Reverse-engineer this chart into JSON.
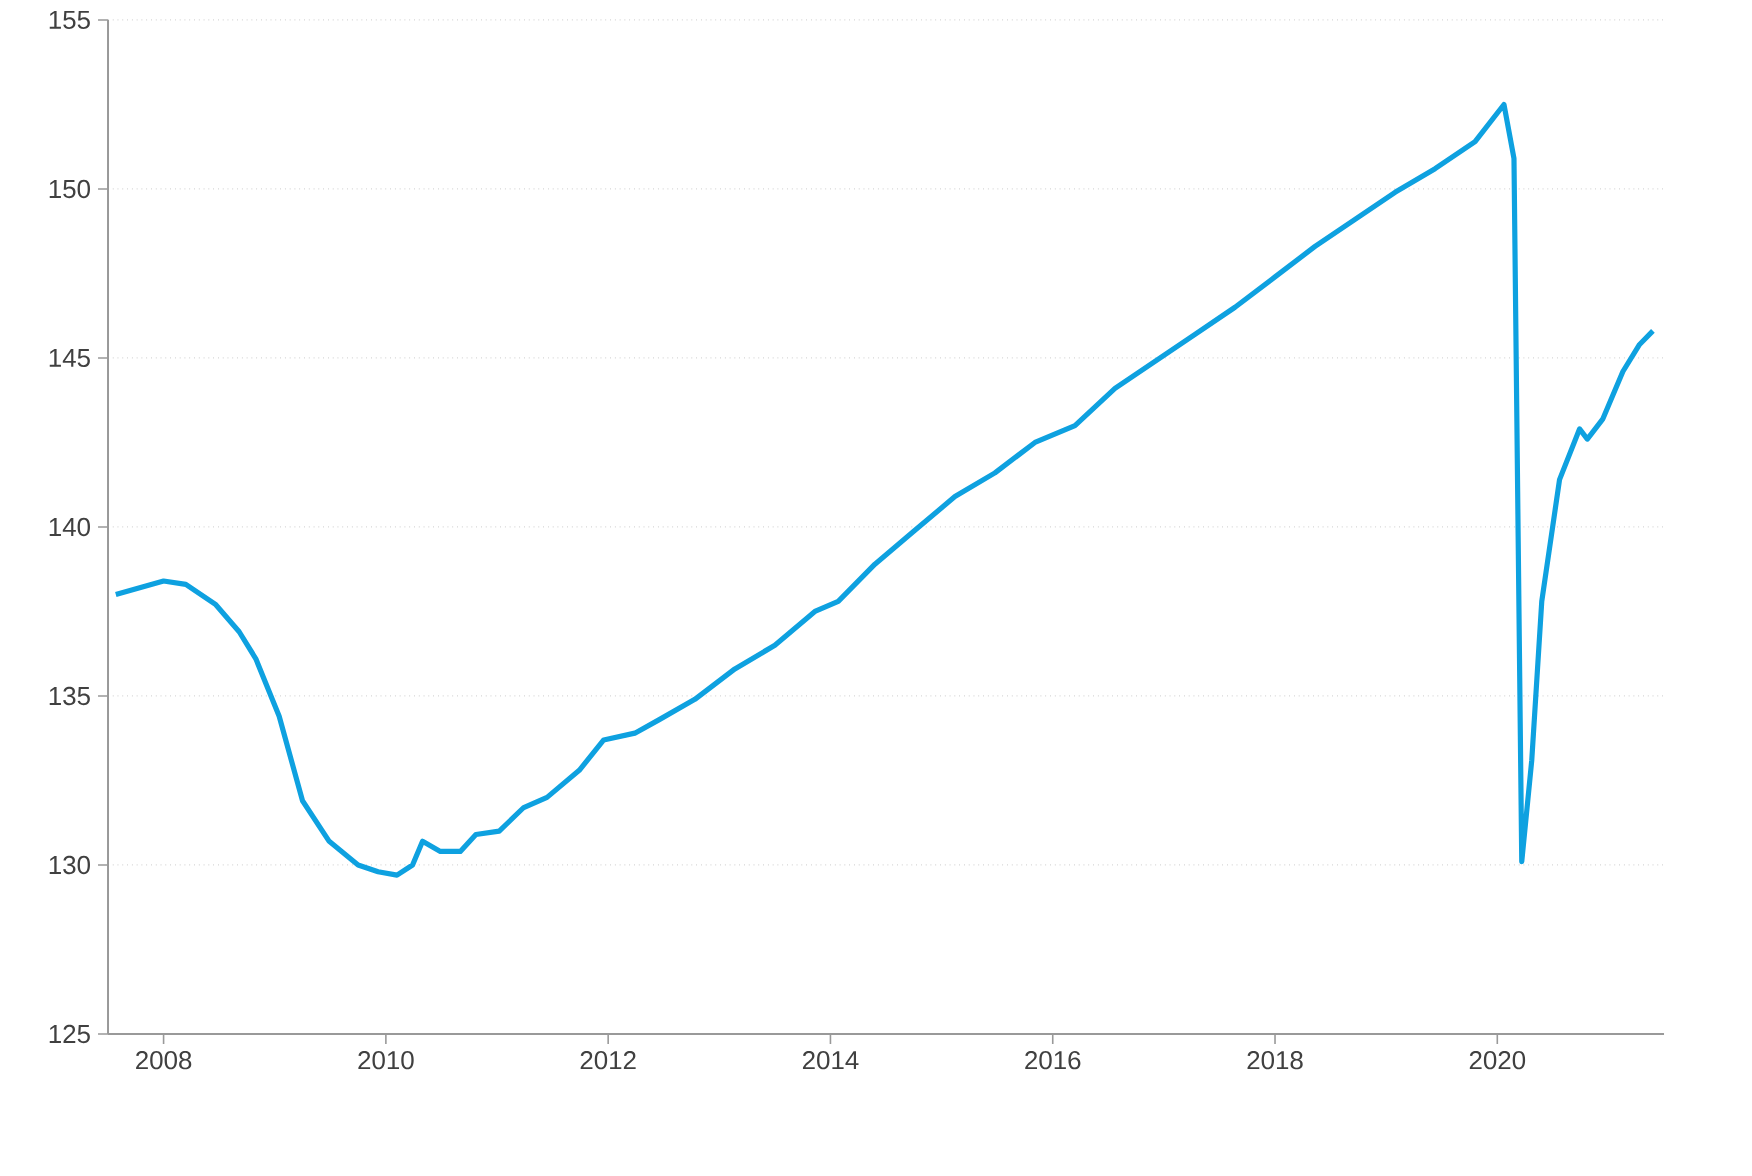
{
  "chart_data": {
    "type": "line",
    "x": [
      2007.57,
      2008.0,
      2008.2,
      2008.47,
      2008.68,
      2008.83,
      2009.04,
      2009.25,
      2009.49,
      2009.75,
      2009.93,
      2010.1,
      2010.24,
      2010.33,
      2010.49,
      2010.67,
      2010.81,
      2011.02,
      2011.24,
      2011.45,
      2011.74,
      2011.96,
      2012.24,
      2012.46,
      2012.78,
      2013.14,
      2013.5,
      2013.86,
      2014.07,
      2014.4,
      2014.76,
      2015.12,
      2015.48,
      2015.84,
      2016.2,
      2016.56,
      2016.92,
      2017.28,
      2017.64,
      2018.0,
      2018.36,
      2018.72,
      2019.08,
      2019.44,
      2019.8,
      2020.06,
      2020.15,
      2020.22,
      2020.31,
      2020.4,
      2020.56,
      2020.74,
      2020.81,
      2020.95,
      2021.13,
      2021.28,
      2021.4
    ],
    "series": [
      {
        "color": "#0ea1e0",
        "values": [
          138.0,
          138.4,
          138.3,
          137.7,
          136.9,
          136.1,
          134.4,
          131.9,
          130.7,
          130.0,
          129.8,
          129.7,
          130.0,
          130.7,
          130.4,
          130.4,
          130.9,
          131.0,
          131.7,
          132.0,
          132.8,
          133.7,
          133.9,
          134.3,
          134.9,
          135.8,
          136.5,
          137.5,
          137.8,
          138.9,
          139.9,
          140.9,
          141.6,
          142.5,
          143.0,
          144.1,
          144.9,
          145.7,
          146.5,
          147.4,
          148.3,
          149.1,
          149.9,
          150.6,
          151.4,
          152.5,
          150.9,
          130.1,
          133.1,
          137.8,
          141.4,
          142.9,
          142.6,
          143.2,
          144.6,
          145.4,
          145.8
        ]
      }
    ],
    "xlim": [
      2007.5,
      2021.5
    ],
    "ylim": [
      125,
      155
    ],
    "xticks": [
      2008,
      2010,
      2012,
      2014,
      2016,
      2018,
      2020
    ],
    "yticks": [
      125,
      130,
      135,
      140,
      145,
      150,
      155
    ],
    "grid": "y",
    "marker": "none",
    "line_style": "solid"
  }
}
